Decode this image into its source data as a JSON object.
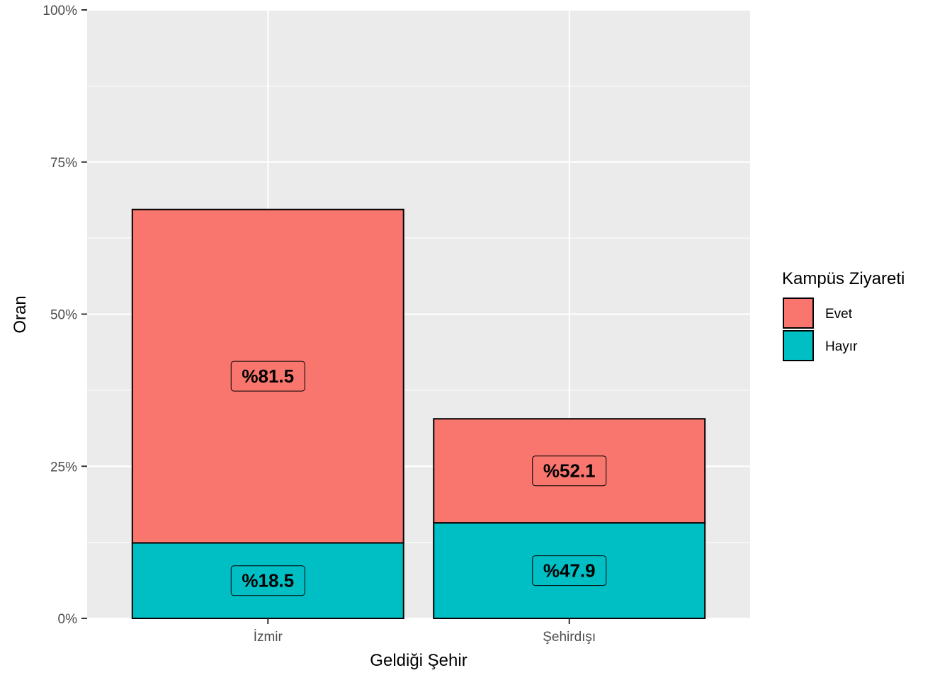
{
  "chart_data": {
    "type": "bar",
    "stacked": true,
    "xlabel": "Geldiği Şehir",
    "ylabel": "Oran",
    "categories": [
      "İzmir",
      "Şehirdışı"
    ],
    "ylim": [
      0,
      1
    ],
    "yticks": [
      {
        "value": 0,
        "label": "0%"
      },
      {
        "value": 0.25,
        "label": "25%"
      },
      {
        "value": 0.5,
        "label": "50%"
      },
      {
        "value": 0.75,
        "label": "75%"
      },
      {
        "value": 1,
        "label": "100%"
      }
    ],
    "series": [
      {
        "name": "Hayır",
        "color": "#00BFC4",
        "values": [
          0.124,
          0.157
        ],
        "labels": [
          "%18.5",
          "%47.9"
        ]
      },
      {
        "name": "Evet",
        "color": "#F8766D",
        "values": [
          0.548,
          0.171
        ],
        "labels": [
          "%81.5",
          "%52.1"
        ]
      }
    ],
    "legend": {
      "title": "Kampüs Ziyareti",
      "position": "right",
      "items": [
        {
          "name": "Evet",
          "color": "#F8766D"
        },
        {
          "name": "Hayır",
          "color": "#00BFC4"
        }
      ]
    },
    "panel_background": "#EBEBEB",
    "grid": true
  }
}
